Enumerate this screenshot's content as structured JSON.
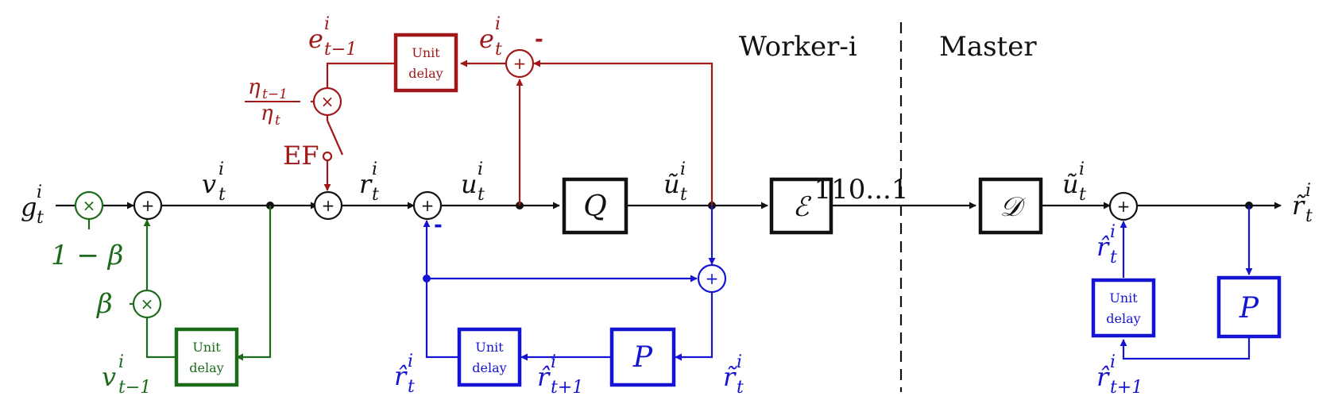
{
  "colors": {
    "black": "#111111",
    "red": "#a01818",
    "green": "#1b6b1b",
    "blue": "#1414d2"
  },
  "regions": {
    "worker": "Worker-i",
    "master": "Master"
  },
  "blocks": {
    "unit_delay_top": "Unit",
    "unit_delay_bottom": "delay",
    "quantizer": "Q",
    "encoder": "ℰ",
    "decoder": "𝒟",
    "predictor": "P"
  },
  "operators": {
    "sum": "+",
    "product": "×",
    "minus": "-"
  },
  "signals": {
    "bitstream": "110...1",
    "ef_switch": "EF"
  },
  "symbols": {
    "g": "g",
    "v": "v",
    "r": "r",
    "u": "u",
    "e": "e",
    "i": "i",
    "t": "t",
    "t_minus_1": "t−1",
    "t_plus_1": "t+1",
    "one_minus_beta": "1 − β",
    "beta": "β",
    "eta": "η",
    "u_tilde": "ũ",
    "r_tilde": "r̃",
    "r_hat": "r̂"
  }
}
